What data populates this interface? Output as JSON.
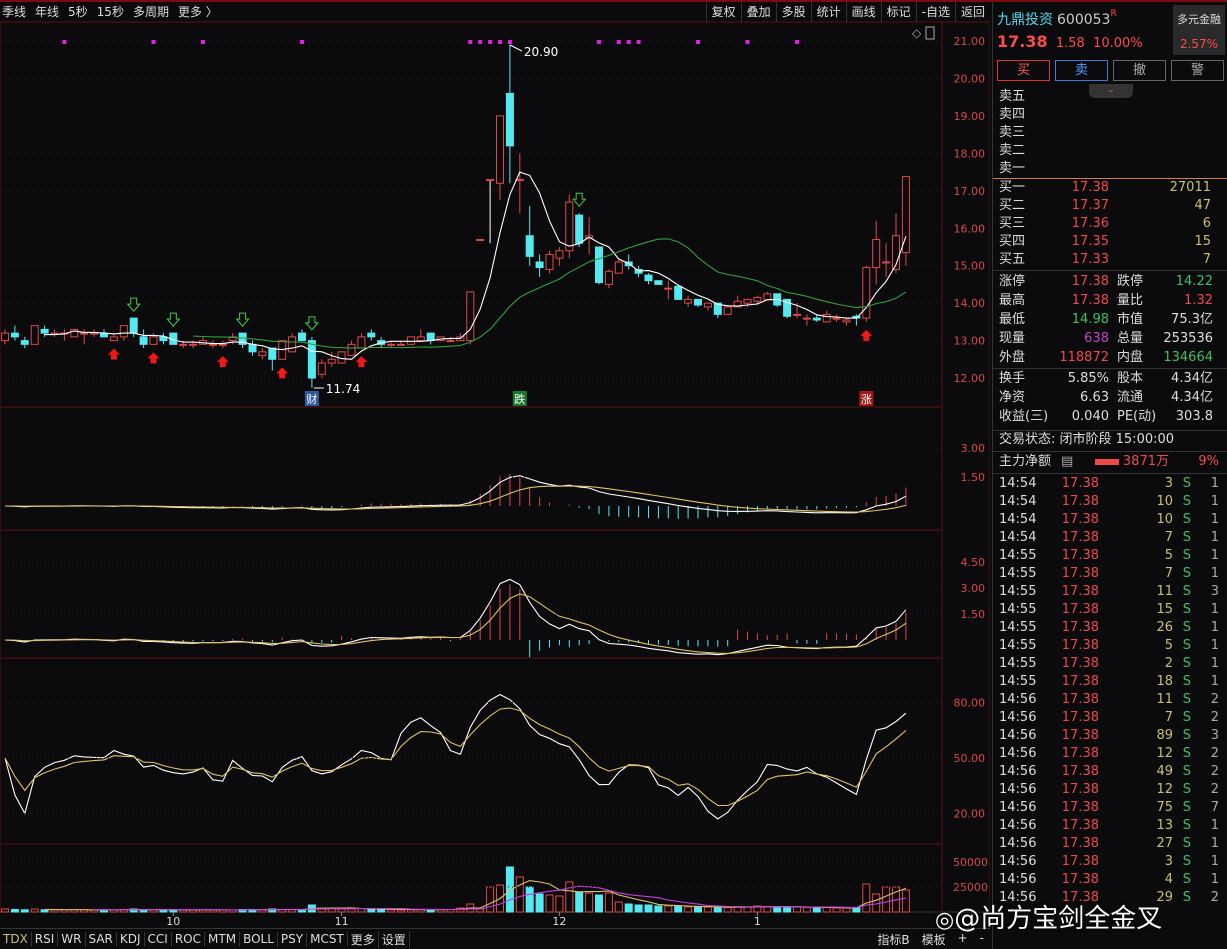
{
  "toolbar": {
    "left": [
      "季线",
      "年线",
      "5秒",
      "15秒",
      "多周期",
      "更多 〉"
    ],
    "right": [
      "复权",
      "叠加",
      "多股",
      "统计",
      "画线",
      "标记",
      "-自选",
      "返回"
    ]
  },
  "stock": {
    "name": "九鼎投资",
    "code": "600053",
    "mark": "R",
    "price": "17.38",
    "change": "1.58",
    "pct": "10.00%",
    "sector": "多元金融",
    "sector_pct": "2.57%"
  },
  "actions": [
    "买",
    "卖",
    "撤",
    "警"
  ],
  "sell": [
    "卖五",
    "卖四",
    "卖三",
    "卖二",
    "卖一"
  ],
  "buy": [
    {
      "l": "买一",
      "p": "17.38",
      "v": "27011"
    },
    {
      "l": "买二",
      "p": "17.37",
      "v": "47"
    },
    {
      "l": "买三",
      "p": "17.36",
      "v": "6"
    },
    {
      "l": "买四",
      "p": "17.35",
      "v": "15"
    },
    {
      "l": "买五",
      "p": "17.33",
      "v": "7"
    }
  ],
  "stats": [
    [
      {
        "l": "涨停",
        "v": "17.38",
        "c": "red"
      },
      {
        "l": "跌停",
        "v": "14.22",
        "c": "grn"
      }
    ],
    [
      {
        "l": "最高",
        "v": "17.38",
        "c": "red"
      },
      {
        "l": "量比",
        "v": "1.32",
        "c": "red"
      }
    ],
    [
      {
        "l": "最低",
        "v": "14.98",
        "c": "grn"
      },
      {
        "l": "市值",
        "v": "75.3亿",
        "c": "wht"
      }
    ],
    [
      {
        "l": "现量",
        "v": "638",
        "c": "pur"
      },
      {
        "l": "总量",
        "v": "253536",
        "c": "wht"
      }
    ],
    [
      {
        "l": "外盘",
        "v": "118872",
        "c": "red"
      },
      {
        "l": "内盘",
        "v": "134664",
        "c": "grn"
      }
    ]
  ],
  "stats2": [
    [
      {
        "l": "换手",
        "v": "5.85%"
      },
      {
        "l": "股本",
        "v": "4.34亿"
      }
    ],
    [
      {
        "l": "净资",
        "v": "6.63"
      },
      {
        "l": "流通",
        "v": "4.34亿"
      }
    ],
    [
      {
        "l": "收益(三)",
        "v": "0.040"
      },
      {
        "l": "PE(动)",
        "v": "303.8"
      }
    ]
  ],
  "trade_status": "交易状态: 闭市阶段 15:00:00",
  "main_flow": {
    "label": "主力净额",
    "value": "3871万",
    "pct": "9%"
  },
  "ticks": [
    [
      "14:54",
      "17.38",
      "3",
      "S",
      "1"
    ],
    [
      "14:54",
      "17.38",
      "10",
      "S",
      "1"
    ],
    [
      "14:54",
      "17.38",
      "10",
      "S",
      "1"
    ],
    [
      "14:54",
      "17.38",
      "7",
      "S",
      "1"
    ],
    [
      "14:55",
      "17.38",
      "5",
      "S",
      "1"
    ],
    [
      "14:55",
      "17.38",
      "7",
      "S",
      "1"
    ],
    [
      "14:55",
      "17.38",
      "11",
      "S",
      "3"
    ],
    [
      "14:55",
      "17.38",
      "15",
      "S",
      "1"
    ],
    [
      "14:55",
      "17.38",
      "26",
      "S",
      "1"
    ],
    [
      "14:55",
      "17.38",
      "5",
      "S",
      "1"
    ],
    [
      "14:55",
      "17.38",
      "2",
      "S",
      "1"
    ],
    [
      "14:55",
      "17.38",
      "18",
      "S",
      "1"
    ],
    [
      "14:56",
      "17.38",
      "11",
      "S",
      "2"
    ],
    [
      "14:56",
      "17.38",
      "7",
      "S",
      "2"
    ],
    [
      "14:56",
      "17.38",
      "89",
      "S",
      "3"
    ],
    [
      "14:56",
      "17.38",
      "12",
      "S",
      "2"
    ],
    [
      "14:56",
      "17.38",
      "49",
      "S",
      "2"
    ],
    [
      "14:56",
      "17.38",
      "12",
      "S",
      "2"
    ],
    [
      "14:56",
      "17.38",
      "75",
      "S",
      "7"
    ],
    [
      "14:56",
      "17.38",
      "13",
      "S",
      "1"
    ],
    [
      "14:56",
      "17.38",
      "27",
      "S",
      "1"
    ],
    [
      "14:56",
      "17.38",
      "3",
      "S",
      "1"
    ],
    [
      "14:56",
      "17.38",
      "4",
      "S",
      "1"
    ],
    [
      "14:56",
      "17.38",
      "29",
      "S",
      "2"
    ]
  ],
  "bottom_tabs": [
    "TDX",
    "RSI",
    "WR",
    "SAR",
    "KDJ",
    "CCI",
    "ROC",
    "MTM",
    "BOLL",
    "PSY",
    "MCST",
    "更多",
    "设置"
  ],
  "bottom_right": [
    "指标B",
    "模板",
    "+",
    "-"
  ],
  "watermark": "@尚方宝剑全金叉",
  "chart_data": {
    "type": "candlestick",
    "price_axis": [
      "21.00",
      "20.00",
      "19.00",
      "18.00",
      "17.00",
      "16.00",
      "15.00",
      "14.00",
      "13.00",
      "12.00"
    ],
    "macd_axis": [
      "3.00",
      "1.50"
    ],
    "panel3_axis": [
      "4.50",
      "3.00",
      "1.50"
    ],
    "osc_axis": [
      "80.00",
      "50.00",
      "20.00"
    ],
    "vol_axis": [
      "50000",
      "25000"
    ],
    "months": [
      {
        "label": "10",
        "i": 17
      },
      {
        "label": "11",
        "i": 34
      },
      {
        "label": "12",
        "i": 56
      },
      {
        "label": "1",
        "i": 76
      }
    ],
    "high_label": "20.90",
    "low_label": "11.74",
    "event_tags": [
      {
        "t": "财",
        "i": 31,
        "c": "#2a5a9a"
      },
      {
        "t": "跌",
        "i": 52,
        "c": "#1c7a2c"
      },
      {
        "t": "涨",
        "i": 87,
        "c": "#a01818"
      }
    ],
    "buy_arrows": [
      11,
      15,
      22,
      28,
      36,
      87
    ],
    "sell_arrows": [
      13,
      17,
      24,
      31,
      58
    ],
    "signal_dots": [
      6,
      15,
      20,
      30,
      47,
      48,
      49,
      50,
      51,
      60,
      62,
      63,
      64,
      70,
      75,
      80
    ],
    "colors": {
      "up": "#e04848",
      "down": "#54e8f0",
      "ma_short": "#ffffff",
      "ma_long": "#2fa03a",
      "grid": "#3a0c10"
    },
    "ohlc": [
      [
        13.0,
        13.3,
        12.9,
        13.2
      ],
      [
        13.2,
        13.4,
        13.0,
        13.1
      ],
      [
        13.0,
        13.1,
        12.8,
        12.9
      ],
      [
        12.9,
        13.4,
        12.9,
        13.4
      ],
      [
        13.3,
        13.4,
        13.1,
        13.2
      ],
      [
        13.2,
        13.3,
        13.1,
        13.2
      ],
      [
        13.2,
        13.3,
        13.0,
        13.2
      ],
      [
        13.1,
        13.3,
        13.1,
        13.3
      ],
      [
        13.2,
        13.3,
        12.9,
        13.2
      ],
      [
        13.2,
        13.3,
        13.1,
        13.2
      ],
      [
        13.2,
        13.3,
        13.1,
        13.1
      ],
      [
        13.0,
        13.2,
        13.0,
        13.1
      ],
      [
        13.1,
        13.4,
        13.0,
        13.4
      ],
      [
        13.6,
        13.6,
        13.1,
        13.2
      ],
      [
        13.1,
        13.3,
        12.8,
        12.9
      ],
      [
        12.9,
        13.2,
        12.9,
        13.1
      ],
      [
        13.1,
        13.2,
        12.9,
        13.0
      ],
      [
        13.2,
        13.2,
        12.9,
        12.9
      ],
      [
        12.9,
        13.0,
        12.8,
        12.9
      ],
      [
        12.9,
        13.0,
        12.8,
        12.9
      ],
      [
        12.9,
        13.1,
        12.9,
        13.0
      ],
      [
        12.9,
        13.0,
        12.8,
        12.9
      ],
      [
        12.9,
        13.0,
        12.8,
        12.9
      ],
      [
        13.0,
        13.2,
        12.9,
        13.1
      ],
      [
        13.2,
        13.2,
        12.8,
        12.9
      ],
      [
        12.9,
        13.0,
        12.6,
        12.7
      ],
      [
        12.6,
        12.8,
        12.5,
        12.7
      ],
      [
        12.8,
        12.8,
        12.2,
        12.5
      ],
      [
        12.5,
        13.0,
        12.5,
        13.0
      ],
      [
        12.7,
        13.2,
        12.7,
        13.1
      ],
      [
        13.2,
        13.3,
        13.0,
        13.0
      ],
      [
        13.0,
        13.1,
        11.74,
        12.0
      ],
      [
        12.1,
        12.5,
        12.0,
        12.4
      ],
      [
        12.4,
        12.7,
        12.3,
        12.5
      ],
      [
        12.4,
        12.7,
        12.4,
        12.7
      ],
      [
        12.6,
        13.0,
        12.6,
        12.9
      ],
      [
        12.8,
        13.2,
        12.8,
        13.1
      ],
      [
        13.2,
        13.3,
        13.0,
        13.1
      ],
      [
        13.0,
        13.1,
        12.8,
        12.9
      ],
      [
        12.9,
        13.0,
        12.8,
        12.9
      ],
      [
        12.9,
        13.0,
        12.9,
        12.9
      ],
      [
        12.9,
        13.1,
        12.9,
        13.1
      ],
      [
        13.0,
        13.3,
        13.0,
        13.1
      ],
      [
        13.2,
        13.2,
        12.9,
        13.0
      ],
      [
        13.0,
        13.1,
        13.0,
        13.1
      ],
      [
        13.0,
        13.1,
        13.0,
        13.0
      ],
      [
        13.0,
        13.2,
        13.0,
        13.1
      ],
      [
        13.0,
        14.3,
        12.9,
        14.3
      ],
      [
        15.7,
        15.7,
        15.7,
        15.7
      ],
      [
        17.3,
        17.3,
        15.6,
        17.3
      ],
      [
        17.2,
        19.0,
        16.75,
        19.0
      ],
      [
        19.6,
        20.9,
        17.2,
        18.2
      ],
      [
        17.3,
        18.0,
        16.4,
        17.3
      ],
      [
        15.8,
        16.6,
        15.0,
        15.25
      ],
      [
        15.1,
        15.3,
        14.7,
        14.95
      ],
      [
        14.9,
        15.4,
        14.8,
        15.3
      ],
      [
        15.2,
        15.5,
        15.0,
        15.4
      ],
      [
        15.4,
        16.9,
        15.2,
        16.7
      ],
      [
        16.35,
        16.4,
        15.5,
        15.6
      ],
      [
        15.75,
        16.3,
        15.3,
        15.8
      ],
      [
        15.5,
        15.5,
        14.5,
        14.55
      ],
      [
        14.5,
        14.9,
        14.4,
        14.85
      ],
      [
        14.8,
        15.2,
        14.8,
        15.1
      ],
      [
        15.1,
        15.3,
        14.9,
        15.0
      ],
      [
        14.9,
        15.0,
        14.7,
        14.8
      ],
      [
        14.75,
        14.8,
        14.5,
        14.6
      ],
      [
        14.6,
        14.6,
        14.5,
        14.5
      ],
      [
        14.4,
        14.6,
        14.1,
        14.4
      ],
      [
        14.45,
        14.5,
        14.1,
        14.1
      ],
      [
        14.0,
        14.2,
        13.9,
        14.1
      ],
      [
        14.1,
        14.1,
        13.9,
        13.95
      ],
      [
        13.9,
        14.0,
        13.8,
        14.0
      ],
      [
        14.0,
        14.0,
        13.6,
        13.7
      ],
      [
        13.7,
        13.9,
        13.7,
        13.9
      ],
      [
        13.9,
        14.2,
        13.9,
        14.05
      ],
      [
        14.0,
        14.1,
        13.9,
        14.1
      ],
      [
        14.05,
        14.2,
        14.0,
        14.15
      ],
      [
        14.1,
        14.3,
        14.1,
        14.25
      ],
      [
        14.25,
        14.25,
        13.9,
        13.95
      ],
      [
        14.1,
        14.1,
        13.6,
        13.65
      ],
      [
        13.7,
        14.0,
        13.6,
        13.7
      ],
      [
        13.6,
        13.7,
        13.4,
        13.6
      ],
      [
        13.6,
        13.7,
        13.5,
        13.55
      ],
      [
        13.5,
        13.8,
        13.5,
        13.7
      ],
      [
        13.6,
        13.7,
        13.5,
        13.6
      ],
      [
        13.5,
        13.6,
        13.4,
        13.55
      ],
      [
        13.65,
        13.7,
        13.4,
        13.6
      ],
      [
        13.6,
        15.0,
        13.5,
        14.95
      ],
      [
        14.95,
        16.2,
        14.5,
        15.7
      ],
      [
        15.1,
        15.6,
        14.7,
        15.1
      ],
      [
        14.9,
        16.4,
        14.8,
        15.8
      ],
      [
        15.35,
        17.38,
        15.0,
        17.38
      ]
    ],
    "volume": [
      3000,
      2500,
      2200,
      3000,
      2200,
      2000,
      2000,
      2200,
      2500,
      2000,
      2000,
      2000,
      2500,
      3000,
      2500,
      2200,
      2000,
      2500,
      2000,
      2000,
      2000,
      2000,
      2200,
      2000,
      2500,
      2500,
      2200,
      3000,
      2500,
      2500,
      2500,
      7000,
      4000,
      3500,
      3000,
      3000,
      3500,
      3000,
      2500,
      2200,
      2000,
      2200,
      2500,
      2500,
      2500,
      2500,
      4000,
      8000,
      3000,
      25000,
      27000,
      45000,
      35000,
      25000,
      18000,
      17000,
      16000,
      30000,
      20000,
      19000,
      17000,
      19000,
      10000,
      8000,
      7000,
      7000,
      6000,
      6000,
      6000,
      5000,
      5000,
      5000,
      5000,
      4500,
      5000,
      5000,
      6000,
      5500,
      5000,
      5000,
      5000,
      4500,
      4000,
      4500,
      4000,
      4000,
      4500,
      28000,
      18000,
      25000,
      25000,
      22000
    ]
  }
}
